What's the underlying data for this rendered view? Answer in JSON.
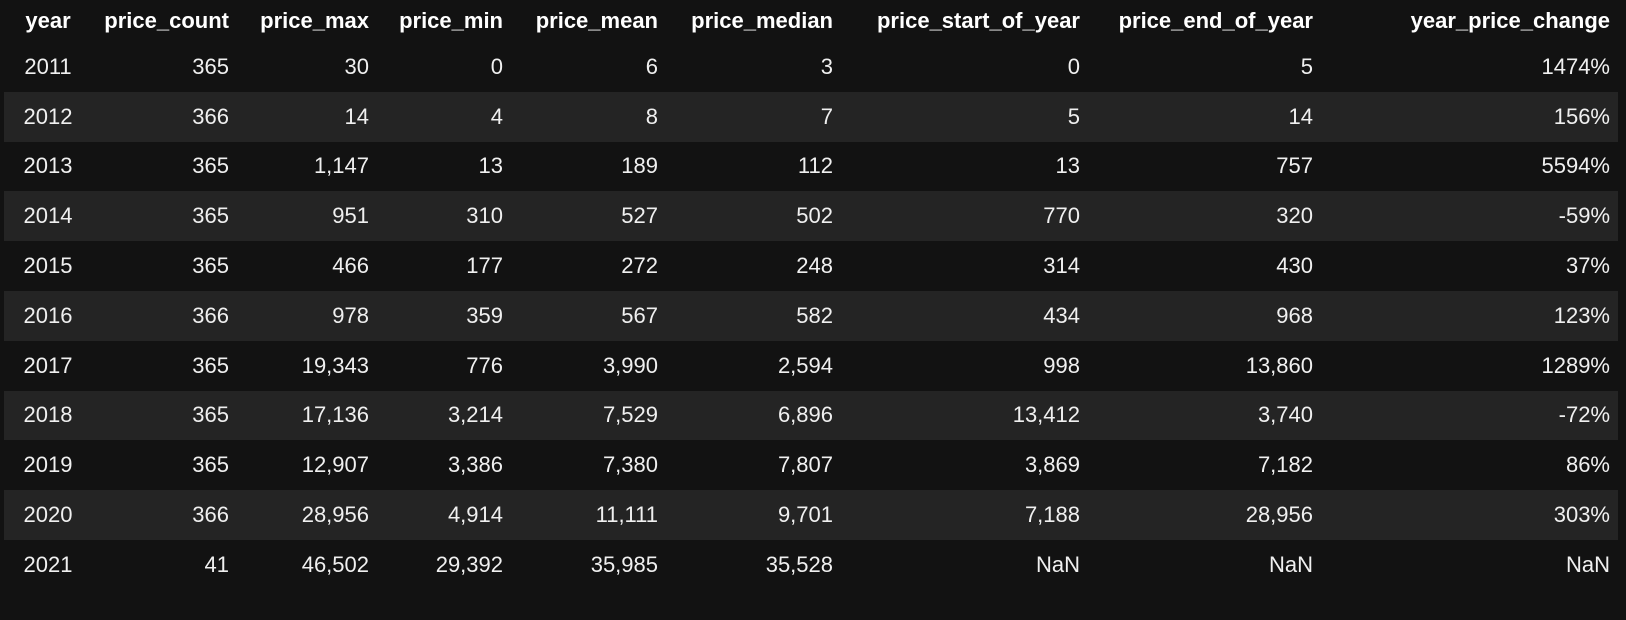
{
  "table": {
    "columns": [
      "year",
      "price_count",
      "price_max",
      "price_min",
      "price_mean",
      "price_median",
      "price_start_of_year",
      "price_end_of_year",
      "year_price_change"
    ],
    "rows": [
      [
        "2011",
        "365",
        "30",
        "0",
        "6",
        "3",
        "0",
        "5",
        "1474%"
      ],
      [
        "2012",
        "366",
        "14",
        "4",
        "8",
        "7",
        "5",
        "14",
        "156%"
      ],
      [
        "2013",
        "365",
        "1,147",
        "13",
        "189",
        "112",
        "13",
        "757",
        "5594%"
      ],
      [
        "2014",
        "365",
        "951",
        "310",
        "527",
        "502",
        "770",
        "320",
        "-59%"
      ],
      [
        "2015",
        "365",
        "466",
        "177",
        "272",
        "248",
        "314",
        "430",
        "37%"
      ],
      [
        "2016",
        "366",
        "978",
        "359",
        "567",
        "582",
        "434",
        "968",
        "123%"
      ],
      [
        "2017",
        "365",
        "19,343",
        "776",
        "3,990",
        "2,594",
        "998",
        "13,860",
        "1289%"
      ],
      [
        "2018",
        "365",
        "17,136",
        "3,214",
        "7,529",
        "6,896",
        "13,412",
        "3,740",
        "-72%"
      ],
      [
        "2019",
        "365",
        "12,907",
        "3,386",
        "7,380",
        "7,807",
        "3,869",
        "7,182",
        "86%"
      ],
      [
        "2020",
        "366",
        "28,956",
        "4,914",
        "11,111",
        "9,701",
        "7,188",
        "28,956",
        "303%"
      ],
      [
        "2021",
        "41",
        "46,502",
        "29,392",
        "35,985",
        "35,528",
        "NaN",
        "NaN",
        "NaN"
      ]
    ]
  },
  "colors": {
    "background": "#121212",
    "row_alt": "#242424",
    "text": "#f0f0f0"
  }
}
